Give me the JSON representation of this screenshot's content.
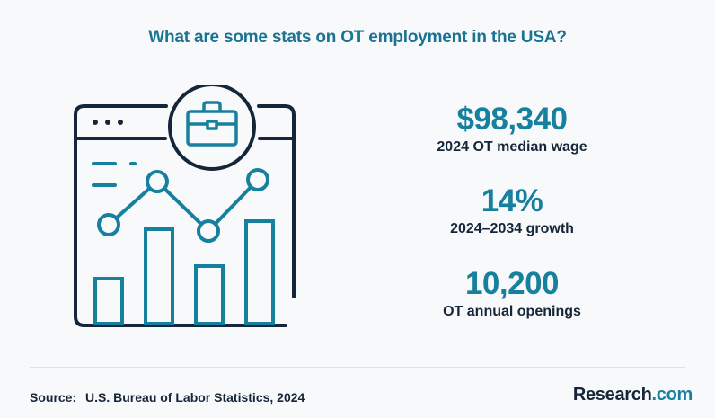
{
  "title": "What are some stats on OT employment in the USA?",
  "stats": [
    {
      "value": "$98,340",
      "label": "2024 OT median wage"
    },
    {
      "value": "14%",
      "label": "2024–2034 growth"
    },
    {
      "value": "10,200",
      "label": "OT annual openings"
    }
  ],
  "source": {
    "label": "Source:",
    "text": "U.S. Bureau of Labor Statistics, 2024"
  },
  "brand": {
    "name": "Research",
    "suffix": ".com"
  },
  "colors": {
    "accent": "#17809e",
    "dark": "#16263a",
    "background": "#f7f9fa"
  },
  "icons": [
    "browser-window-icon",
    "briefcase-icon",
    "bar-chart-icon",
    "line-chart-icon"
  ]
}
